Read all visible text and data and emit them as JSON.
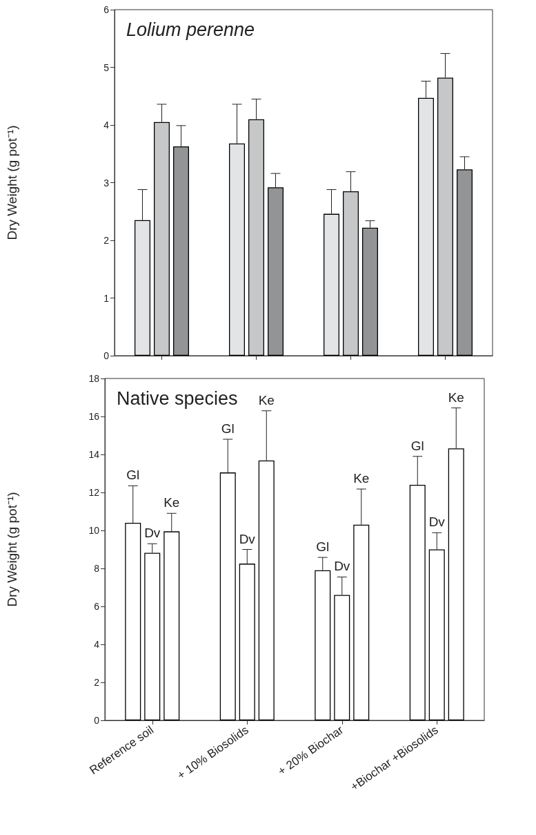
{
  "chart_data": [
    {
      "type": "bar",
      "title": "Lolium perenne",
      "ylabel": "Dry Weight (g pot⁻¹)",
      "categories": [
        null,
        null,
        null,
        null
      ],
      "tick_labels": "y",
      "ylim": [
        0,
        6
      ],
      "yticks": [
        0,
        1,
        2,
        3,
        4,
        5,
        6
      ],
      "series": [
        {
          "color": "#e3e4e5",
          "values": [
            2.35,
            3.68,
            2.46,
            4.47
          ],
          "errors": [
            [
              2.35,
              2.88
            ],
            [
              3.68,
              4.36
            ],
            [
              2.46,
              2.88
            ],
            [
              4.47,
              4.76
            ]
          ]
        },
        {
          "color": "#c6c7c8",
          "values": [
            4.05,
            4.1,
            2.85,
            4.82
          ],
          "errors": [
            [
              4.05,
              4.36
            ],
            [
              4.1,
              4.45
            ],
            [
              2.85,
              3.19
            ],
            [
              4.82,
              5.24
            ]
          ]
        },
        {
          "color": "#939495",
          "values": [
            3.63,
            2.92,
            2.22,
            3.23
          ],
          "errors": [
            [
              3.63,
              3.99
            ],
            [
              2.92,
              3.16
            ],
            [
              2.22,
              2.34
            ],
            [
              3.23,
              3.45
            ]
          ]
        }
      ]
    },
    {
      "type": "bar",
      "title": "Native species",
      "ylabel": "Dry Weight (g pot⁻¹)",
      "categories": [
        "Reference soil",
        "+ 10% Biosolids",
        "+ 20% Biochar",
        "+Biochar +Biosolids"
      ],
      "ylim": [
        0,
        18
      ],
      "yticks": [
        0,
        2,
        4,
        6,
        8,
        10,
        12,
        14,
        16,
        18
      ],
      "series": [
        {
          "name": "Gl",
          "color": "#ffffff",
          "values": [
            10.4,
            13.05,
            7.9,
            12.4
          ],
          "errors": [
            [
              10.4,
              12.35
            ],
            [
              13.05,
              14.8
            ],
            [
              7.9,
              8.58
            ],
            [
              12.4,
              13.9
            ]
          ]
        },
        {
          "name": "Dv",
          "color": "#ffffff",
          "values": [
            8.82,
            8.25,
            6.6,
            9.0
          ],
          "errors": [
            [
              8.82,
              9.3
            ],
            [
              8.25,
              9.0
            ],
            [
              6.6,
              7.55
            ],
            [
              9.0,
              9.88
            ]
          ]
        },
        {
          "name": "Ke",
          "color": "#ffffff",
          "values": [
            9.95,
            13.68,
            10.3,
            14.32
          ],
          "errors": [
            [
              9.95,
              10.9
            ],
            [
              13.68,
              16.3
            ],
            [
              10.3,
              12.18
            ],
            [
              14.32,
              16.45
            ]
          ]
        }
      ]
    }
  ]
}
